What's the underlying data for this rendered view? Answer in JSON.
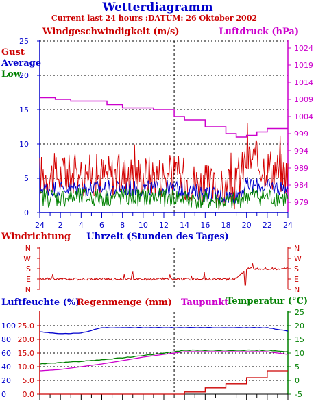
{
  "header": {
    "title": "Wetterdiagramm",
    "subtitle": "Current last 24 hours :DATUM: 26 Oktober 2002"
  },
  "colors": {
    "gust": "#d40000",
    "average": "#0000cc",
    "low": "#008000",
    "pressure": "#cc00cc",
    "direction": "#cc0000",
    "humidity": "#0000cc",
    "rain": "#cc0000",
    "temperature": "#008000",
    "dewpoint": "#cc00cc",
    "axis": "#0000cc"
  },
  "chart_data": [
    {
      "type": "line",
      "name": "wind_pressure",
      "left_title": "Windgeschwindigkeit (m/s)",
      "right_title": "Luftdruck (hPa)",
      "legend": [
        "Gust",
        "Average",
        "Low"
      ],
      "xlabel": "Uhrzeit (Stunden des Tages)",
      "x_tick_labels": [
        "24",
        "2",
        "4",
        "6",
        "8",
        "10",
        "12",
        "14",
        "16",
        "18",
        "20",
        "22",
        "24"
      ],
      "ylim": [
        0,
        25
      ],
      "y_ticks": [
        "0",
        "5",
        "10",
        "15",
        "20",
        "25"
      ],
      "y2lim": [
        976,
        1026
      ],
      "y2_ticks": [
        "979",
        "984",
        "989",
        "994",
        "999",
        "1004",
        "1009",
        "1014",
        "1019",
        "1024"
      ],
      "grid": true,
      "x": [
        0,
        6,
        12,
        13,
        14,
        18,
        19,
        20,
        24
      ],
      "series": [
        {
          "name": "Gust",
          "axis": "left",
          "values": [
            5.5,
            5.5,
            5.5,
            5.5,
            5.0,
            3.0,
            3.5,
            8.0,
            5.5
          ]
        },
        {
          "name": "Average",
          "axis": "left",
          "values": [
            3.5,
            3.5,
            3.5,
            3.5,
            3.3,
            2.3,
            2.5,
            4.0,
            3.5
          ]
        },
        {
          "name": "Low",
          "axis": "left",
          "values": [
            2.2,
            2.2,
            2.2,
            2.2,
            2.0,
            1.5,
            1.6,
            2.5,
            2.0
          ]
        },
        {
          "name": "Luftdruck",
          "axis": "right",
          "x": [
            0,
            1.5,
            3,
            6.5,
            8,
            11,
            13,
            14,
            16,
            18,
            19,
            20,
            21,
            22,
            24
          ],
          "values": [
            1009.5,
            1009,
            1008.5,
            1007.5,
            1006.5,
            1006,
            1004,
            1003,
            1001,
            999,
            998,
            998.5,
            999.5,
            1000.5,
            1000.5
          ]
        }
      ]
    },
    {
      "type": "line",
      "name": "wind_direction",
      "title": "Windrichtung",
      "y_ticks": [
        "N",
        "W",
        "S",
        "E",
        "N"
      ],
      "x": [
        0,
        4,
        6,
        10,
        14,
        17,
        19,
        20,
        21,
        24
      ],
      "values": [
        "E",
        "E",
        "E",
        "E",
        "E",
        "E",
        "E",
        "S",
        "S",
        "S"
      ]
    },
    {
      "type": "line",
      "name": "humidity_rain_temp",
      "legend": [
        "Luftfeuchte (%)",
        "Regenmenge (mm)",
        "Taupunkt",
        "Temperatur (°C)"
      ],
      "left_outer_ticks": [
        "0",
        "20",
        "40",
        "60",
        "80",
        "100"
      ],
      "left_inner_ticks": [
        "0.0",
        "5.0",
        "10.0",
        "15.0",
        "20.0",
        "25.0"
      ],
      "right_ticks": [
        "-5",
        "0",
        "5",
        "10",
        "15",
        "20",
        "25"
      ],
      "x": [
        0,
        2,
        4,
        6,
        10,
        12,
        14,
        16,
        18,
        20,
        22,
        24
      ],
      "series": [
        {
          "name": "Luftfeuchte (%)",
          "values": [
            91,
            88,
            89,
            97,
            97,
            97,
            97,
            97,
            97,
            97,
            97,
            92
          ]
        },
        {
          "name": "Regenmenge (mm)",
          "values": [
            0,
            0,
            0,
            0,
            0,
            0,
            0.8,
            2.3,
            3.8,
            6.0,
            8.5,
            8.5
          ]
        },
        {
          "name": "Taupunkt",
          "values": [
            3.5,
            4.0,
            5.0,
            6.0,
            8.5,
            9.5,
            10.5,
            10.5,
            10.5,
            10.5,
            10.5,
            9.5
          ]
        },
        {
          "name": "Temperatur (°C)",
          "values": [
            6.0,
            6.5,
            7.0,
            7.5,
            9.0,
            10.0,
            11.0,
            11.0,
            11.0,
            11.0,
            11.0,
            10.5
          ]
        }
      ]
    }
  ]
}
